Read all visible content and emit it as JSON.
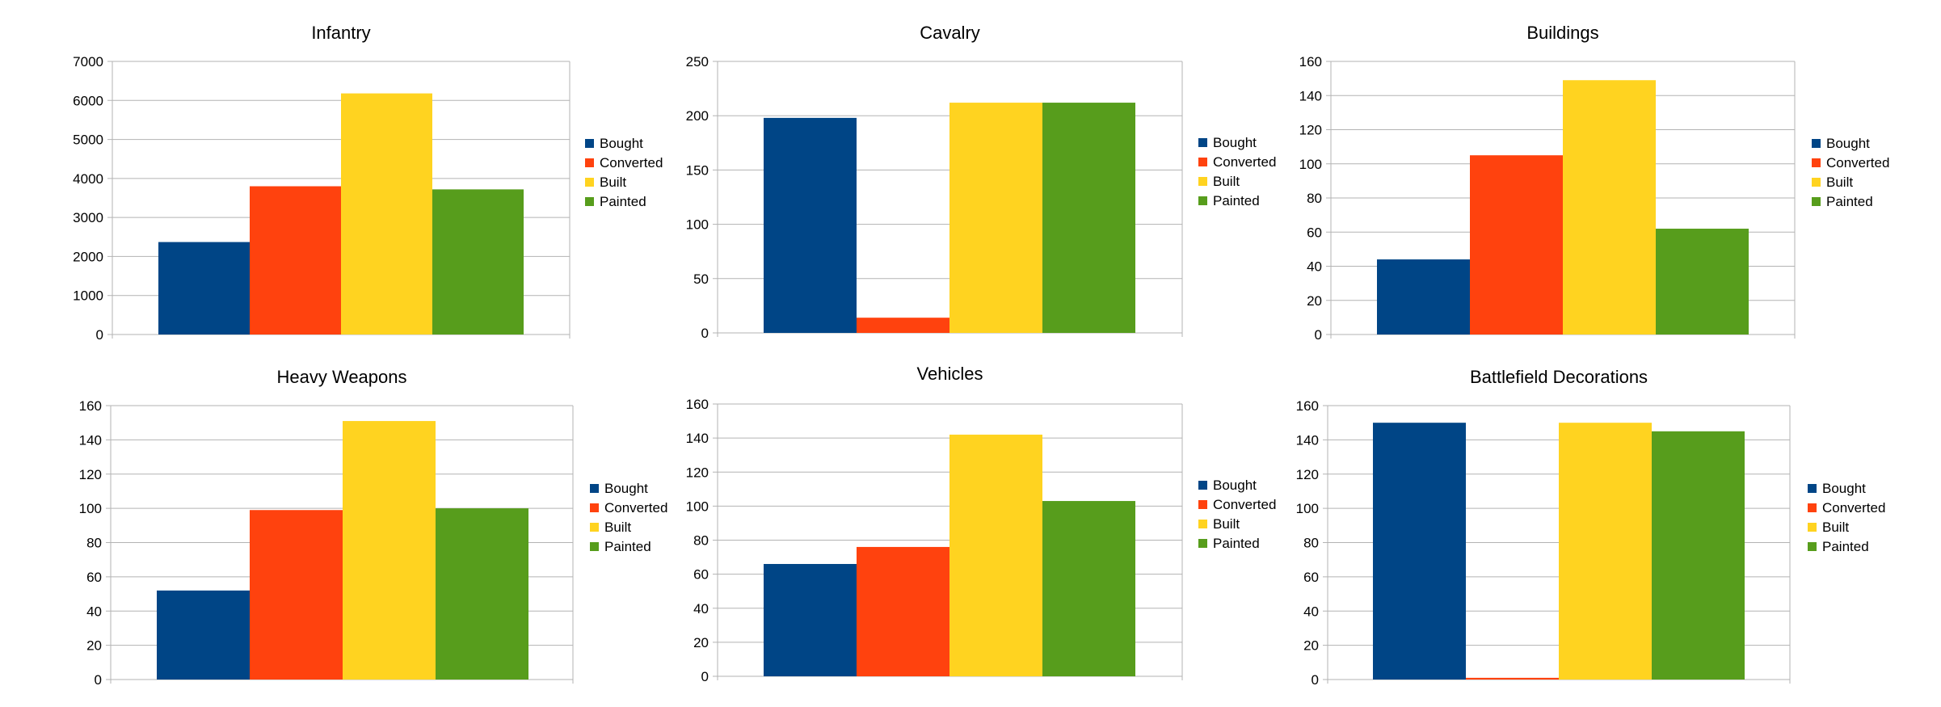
{
  "colors": {
    "Bought": "#004586",
    "Converted": "#ff420e",
    "Built": "#ffd320",
    "Painted": "#579d1c",
    "grid": "#b3b3b3"
  },
  "legend_labels": [
    "Bought",
    "Converted",
    "Built",
    "Painted"
  ],
  "chart_data": [
    {
      "type": "bar",
      "title": "Infantry",
      "categories": [
        "Bought",
        "Converted",
        "Built",
        "Painted"
      ],
      "values": [
        2370,
        3800,
        6180,
        3720
      ],
      "ylim": [
        0,
        7000
      ],
      "yticks": [
        0,
        1000,
        2000,
        3000,
        4000,
        5000,
        6000,
        7000
      ],
      "legend": "right"
    },
    {
      "type": "bar",
      "title": "Cavalry",
      "categories": [
        "Bought",
        "Converted",
        "Built",
        "Painted"
      ],
      "values": [
        198,
        14,
        212,
        212
      ],
      "ylim": [
        0,
        250
      ],
      "yticks": [
        0,
        50,
        100,
        150,
        200,
        250
      ],
      "legend": "right"
    },
    {
      "type": "bar",
      "title": "Buildings",
      "categories": [
        "Bought",
        "Converted",
        "Built",
        "Painted"
      ],
      "values": [
        44,
        105,
        149,
        62
      ],
      "ylim": [
        0,
        160
      ],
      "yticks": [
        0,
        20,
        40,
        60,
        80,
        100,
        120,
        140,
        160
      ],
      "legend": "right"
    },
    {
      "type": "bar",
      "title": "Heavy Weapons",
      "categories": [
        "Bought",
        "Converted",
        "Built",
        "Painted"
      ],
      "values": [
        52,
        99,
        151,
        100
      ],
      "ylim": [
        0,
        160
      ],
      "yticks": [
        0,
        20,
        40,
        60,
        80,
        100,
        120,
        140,
        160
      ],
      "legend": "right"
    },
    {
      "type": "bar",
      "title": "Vehicles",
      "categories": [
        "Bought",
        "Converted",
        "Built",
        "Painted"
      ],
      "values": [
        66,
        76,
        142,
        103
      ],
      "ylim": [
        0,
        160
      ],
      "yticks": [
        0,
        20,
        40,
        60,
        80,
        100,
        120,
        140,
        160
      ],
      "legend": "right"
    },
    {
      "type": "bar",
      "title": "Battlefield Decorations",
      "categories": [
        "Bought",
        "Converted",
        "Built",
        "Painted"
      ],
      "values": [
        150,
        1,
        150,
        145
      ],
      "ylim": [
        0,
        160
      ],
      "yticks": [
        0,
        20,
        40,
        60,
        80,
        100,
        120,
        140,
        160
      ],
      "legend": "right"
    }
  ]
}
